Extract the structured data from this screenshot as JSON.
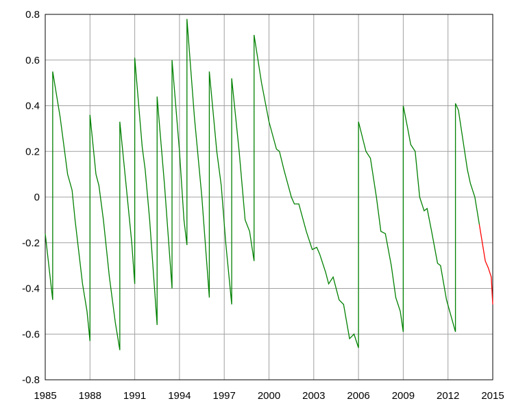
{
  "chart_data": {
    "type": "line",
    "xlim": [
      1985,
      2015
    ],
    "xticks": [
      1985,
      1988,
      1991,
      1994,
      1997,
      2000,
      2003,
      2006,
      2009,
      2012,
      2015
    ],
    "ylim": [
      -0.8,
      0.8
    ],
    "yticks": [
      -0.8,
      -0.6,
      -0.4,
      -0.2,
      0,
      0.2,
      0.4,
      0.6,
      0.8
    ],
    "grid": true,
    "series": [
      {
        "color": "#008000",
        "x": [
          1985.0,
          1985.5,
          1985.5,
          1986.0,
          1986.5,
          1986.8,
          1987.0,
          1987.5,
          1987.8,
          1988.0,
          1988.0,
          1988.4,
          1988.6,
          1988.9,
          1989.3,
          1989.7,
          1990.0,
          1990.0,
          1990.5,
          1990.8,
          1991.0,
          1991.0,
          1991.5,
          1991.7,
          1992.0,
          1992.5,
          1992.5,
          1993.0,
          1993.5,
          1993.5,
          1994.0,
          1994.3,
          1994.5,
          1994.5,
          1995.0,
          1995.5,
          1996.0,
          1996.0,
          1996.5,
          1996.8,
          1997.1,
          1997.5,
          1997.5,
          1998.0,
          1998.4,
          1998.7,
          1999.0,
          1999.0,
          1999.5,
          2000.0,
          2000.5,
          2000.7,
          2001.0,
          2001.5,
          2001.7,
          2002.0,
          2002.5,
          2002.9,
          2003.2,
          2003.4,
          2003.8,
          2004.0,
          2004.3,
          2004.7,
          2005.0,
          2005.4,
          2005.7,
          2006.0,
          2006.0,
          2006.5,
          2006.8,
          2007.2,
          2007.5,
          2007.8,
          2008.2,
          2008.5,
          2008.8,
          2009.0,
          2009.0,
          2009.3,
          2009.5,
          2009.8,
          2010.1,
          2010.4,
          2010.6,
          2010.9,
          2011.3,
          2011.5,
          2011.9,
          2012.5,
          2012.5,
          2012.7,
          2013.0,
          2013.3,
          2013.5,
          2013.8,
          2014.1
        ],
        "values": [
          -0.16,
          -0.45,
          0.55,
          0.35,
          0.1,
          0.03,
          -0.1,
          -0.38,
          -0.5,
          -0.63,
          0.36,
          0.1,
          0.05,
          -0.1,
          -0.35,
          -0.55,
          -0.67,
          0.33,
          0.0,
          -0.2,
          -0.38,
          0.61,
          0.22,
          0.12,
          -0.1,
          -0.56,
          0.44,
          0.05,
          -0.4,
          0.6,
          0.2,
          -0.1,
          -0.21,
          0.78,
          0.35,
          0.0,
          -0.44,
          0.55,
          0.2,
          0.05,
          -0.2,
          -0.47,
          0.52,
          0.2,
          -0.1,
          -0.15,
          -0.28,
          0.71,
          0.5,
          0.33,
          0.21,
          0.2,
          0.12,
          0.0,
          -0.03,
          -0.03,
          -0.15,
          -0.23,
          -0.22,
          -0.25,
          -0.33,
          -0.38,
          -0.35,
          -0.45,
          -0.47,
          -0.62,
          -0.6,
          -0.66,
          0.33,
          0.2,
          0.17,
          0.0,
          -0.15,
          -0.16,
          -0.3,
          -0.44,
          -0.5,
          -0.59,
          0.4,
          0.3,
          0.23,
          0.2,
          0.0,
          -0.06,
          -0.05,
          -0.15,
          -0.29,
          -0.3,
          -0.45,
          -0.59,
          0.41,
          0.38,
          0.25,
          0.12,
          0.06,
          0.0,
          -0.12
        ]
      },
      {
        "color": "#ff0000",
        "x": [
          2014.1,
          2014.5,
          2014.7,
          2014.9,
          2015.0
        ],
        "values": [
          -0.12,
          -0.28,
          -0.31,
          -0.35,
          -0.47
        ]
      }
    ]
  }
}
